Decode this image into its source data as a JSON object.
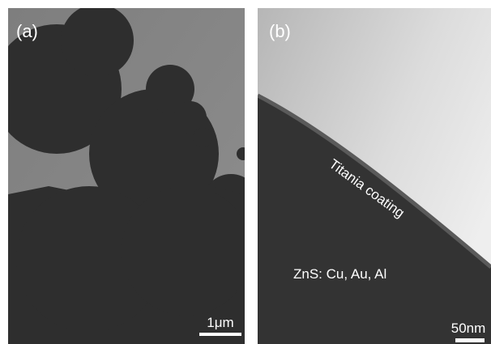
{
  "panels": [
    {
      "label": "(a)",
      "scale_bar": "1μm"
    },
    {
      "label": "(b)",
      "scale_bar": "50nm",
      "annotations": [
        "Titania coating",
        "ZnS: Cu, Au, Al"
      ]
    }
  ]
}
